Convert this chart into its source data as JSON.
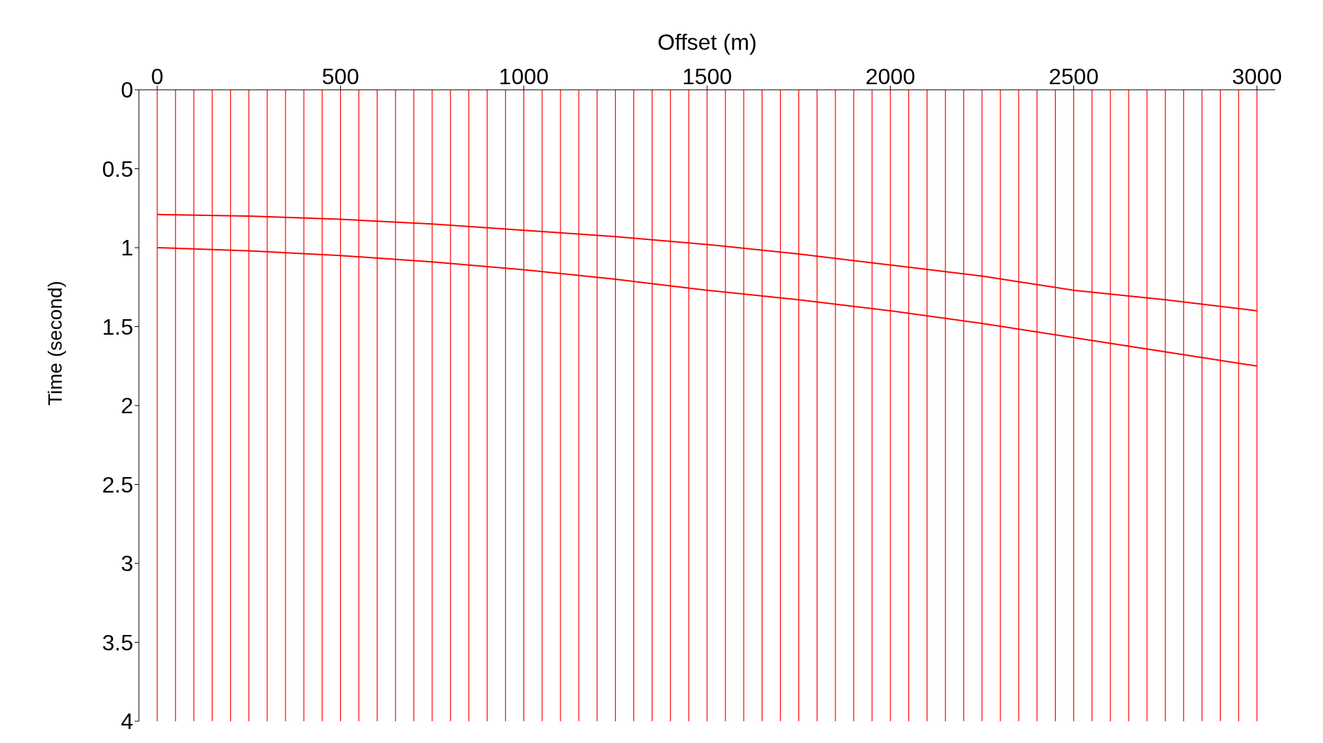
{
  "chart_data": {
    "type": "line",
    "xlabel": "Offset (m)",
    "ylabel": "Time (second)",
    "x": [
      0,
      250,
      500,
      750,
      1000,
      1250,
      1500,
      1750,
      2000,
      2250,
      2500,
      2750,
      3000
    ],
    "series": [
      {
        "color": "#ff0000",
        "values": [
          0.79,
          0.8,
          0.82,
          0.85,
          0.89,
          0.93,
          0.98,
          1.04,
          1.11,
          1.18,
          1.27,
          1.33,
          1.4
        ]
      },
      {
        "color": "#ff0000",
        "values": [
          1.0,
          1.02,
          1.05,
          1.09,
          1.14,
          1.2,
          1.27,
          1.33,
          1.4,
          1.48,
          1.57,
          1.66,
          1.75
        ]
      }
    ],
    "xlim": [
      -50,
      3050
    ],
    "xticks": [
      0,
      500,
      1000,
      1500,
      2000,
      2500,
      3000
    ],
    "ylim": [
      4,
      0
    ],
    "yticks": [
      0,
      0.5,
      1,
      1.5,
      2,
      2.5,
      3,
      3.5,
      4
    ],
    "marker": "none",
    "line_style": "solid",
    "grid": false,
    "legend": false,
    "ref_lines": [
      {
        "axis": "x",
        "value": 0,
        "color": "#ff0000"
      },
      {
        "axis": "x",
        "value": 50,
        "color": "#ff0000"
      },
      {
        "axis": "x",
        "value": 100,
        "color": "#ff0000"
      },
      {
        "axis": "x",
        "value": 150,
        "color": "#ff0000"
      },
      {
        "axis": "x",
        "value": 200,
        "color": "#ff0000"
      },
      {
        "axis": "x",
        "value": 250,
        "color": "#ff0000"
      },
      {
        "axis": "x",
        "value": 300,
        "color": "#ff0000"
      },
      {
        "axis": "x",
        "value": 350,
        "color": "#ff0000"
      },
      {
        "axis": "x",
        "value": 400,
        "color": "#ff0000"
      },
      {
        "axis": "x",
        "value": 450,
        "color": "#ff0000"
      },
      {
        "axis": "x",
        "value": 500,
        "color": "#ff0000"
      },
      {
        "axis": "x",
        "value": 550,
        "color": "#ff0000"
      },
      {
        "axis": "x",
        "value": 600,
        "color": "#ff0000"
      },
      {
        "axis": "x",
        "value": 650,
        "color": "#ff0000"
      },
      {
        "axis": "x",
        "value": 700,
        "color": "#ff0000"
      },
      {
        "axis": "x",
        "value": 750,
        "color": "#ff0000"
      },
      {
        "axis": "x",
        "value": 800,
        "color": "#ff0000"
      },
      {
        "axis": "x",
        "value": 850,
        "color": "#ff0000"
      },
      {
        "axis": "x",
        "value": 900,
        "color": "#ff0000"
      },
      {
        "axis": "x",
        "value": 950,
        "color": "#ff0000"
      },
      {
        "axis": "x",
        "value": 1000,
        "color": "#ff0000"
      },
      {
        "axis": "x",
        "value": 1050,
        "color": "#ff0000"
      },
      {
        "axis": "x",
        "value": 1100,
        "color": "#ff0000"
      },
      {
        "axis": "x",
        "value": 1150,
        "color": "#ff0000"
      },
      {
        "axis": "x",
        "value": 1200,
        "color": "#ff0000"
      },
      {
        "axis": "x",
        "value": 1250,
        "color": "#ff0000"
      },
      {
        "axis": "x",
        "value": 1300,
        "color": "#ff0000"
      },
      {
        "axis": "x",
        "value": 1350,
        "color": "#ff0000"
      },
      {
        "axis": "x",
        "value": 1400,
        "color": "#ff0000"
      },
      {
        "axis": "x",
        "value": 1450,
        "color": "#ff0000"
      },
      {
        "axis": "x",
        "value": 1500,
        "color": "#ff0000"
      },
      {
        "axis": "x",
        "value": 1550,
        "color": "#ff0000"
      },
      {
        "axis": "x",
        "value": 1600,
        "color": "#ff0000"
      },
      {
        "axis": "x",
        "value": 1650,
        "color": "#ff0000"
      },
      {
        "axis": "x",
        "value": 1700,
        "color": "#ff0000"
      },
      {
        "axis": "x",
        "value": 1750,
        "color": "#ff0000"
      },
      {
        "axis": "x",
        "value": 1800,
        "color": "#ff0000"
      },
      {
        "axis": "x",
        "value": 1850,
        "color": "#ff0000"
      },
      {
        "axis": "x",
        "value": 1900,
        "color": "#ff0000"
      },
      {
        "axis": "x",
        "value": 1950,
        "color": "#ff0000"
      },
      {
        "axis": "x",
        "value": 2000,
        "color": "#ff0000"
      },
      {
        "axis": "x",
        "value": 2050,
        "color": "#ff0000"
      },
      {
        "axis": "x",
        "value": 2100,
        "color": "#ff0000"
      },
      {
        "axis": "x",
        "value": 2150,
        "color": "#ff0000"
      },
      {
        "axis": "x",
        "value": 2200,
        "color": "#ff0000"
      },
      {
        "axis": "x",
        "value": 2250,
        "color": "#ff0000"
      },
      {
        "axis": "x",
        "value": 2300,
        "color": "#ff0000"
      },
      {
        "axis": "x",
        "value": 2350,
        "color": "#ff0000"
      },
      {
        "axis": "x",
        "value": 2400,
        "color": "#ff0000"
      },
      {
        "axis": "x",
        "value": 2450,
        "color": "#ff0000"
      },
      {
        "axis": "x",
        "value": 2500,
        "color": "#ff0000"
      },
      {
        "axis": "x",
        "value": 2550,
        "color": "#ff0000"
      },
      {
        "axis": "x",
        "value": 2600,
        "color": "#ff0000"
      },
      {
        "axis": "x",
        "value": 2650,
        "color": "#ff0000"
      },
      {
        "axis": "x",
        "value": 2700,
        "color": "#ff0000"
      },
      {
        "axis": "x",
        "value": 2750,
        "color": "#ff0000"
      },
      {
        "axis": "x",
        "value": 2800,
        "color": "#ff0000"
      },
      {
        "axis": "x",
        "value": 2850,
        "color": "#ff0000"
      },
      {
        "axis": "x",
        "value": 2900,
        "color": "#ff0000"
      },
      {
        "axis": "x",
        "value": 2950,
        "color": "#ff0000"
      },
      {
        "axis": "x",
        "value": 3000,
        "color": "#ff0000"
      }
    ]
  }
}
